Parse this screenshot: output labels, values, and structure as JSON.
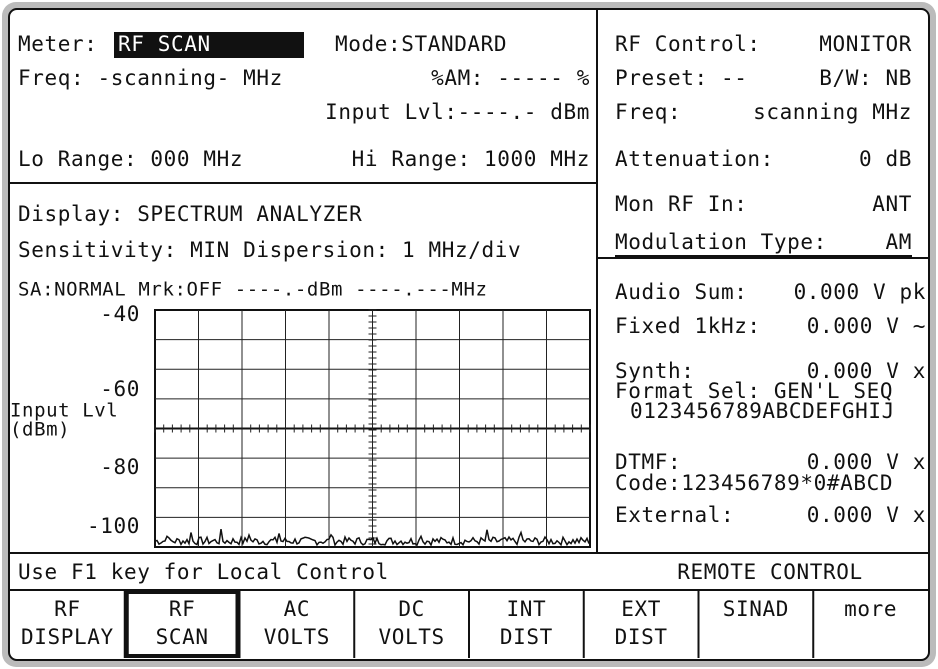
{
  "meter": {
    "label": "Meter:",
    "value": "RF SCAN",
    "mode": "Mode:STANDARD",
    "freq": "Freq:  -scanning- MHz",
    "am": "%AM: ----- %",
    "input_lvl": "Input Lvl:----.- dBm",
    "lo_range": "Lo Range: 000 MHz",
    "hi_range": "Hi Range:  1000 MHz"
  },
  "display": {
    "display": "Display: SPECTRUM ANALYZER",
    "sensitivity": "Sensitivity: MIN Dispersion:  1 MHz/div",
    "marker": "SA:NORMAL Mrk:OFF  ----.-dBm ----.---MHz",
    "y_labels": [
      "-40",
      "-60",
      "-80",
      "-100"
    ],
    "y_title": [
      "Input Lvl",
      "(dBm)"
    ]
  },
  "rf_control": {
    "rows": [
      [
        "RF Control:",
        "MONITOR"
      ],
      [
        "Preset: --",
        "B/W: NB"
      ],
      [
        "Freq:",
        "scanning MHz"
      ],
      [
        "Attenuation:",
        "0 dB"
      ],
      [
        "Mon RF In:",
        "ANT"
      ],
      [
        "Modulation Type:",
        "AM"
      ]
    ]
  },
  "audio": {
    "rows": [
      [
        "Audio Sum:",
        "0.000 V pk"
      ],
      [
        "Fixed 1kHz:",
        "0.000 V  ~"
      ],
      [
        "Synth:",
        "0.000 V  x"
      ],
      [
        "DTMF:",
        "0.000 V  x"
      ],
      [
        "External:",
        "0.000 V  x"
      ]
    ],
    "format_sel": "Format Sel: GEN'L SEQ",
    "sequence": "0123456789ABCDEFGHIJ",
    "code": "Code:123456789*0#ABCD"
  },
  "status": {
    "hint": "Use F1 key for Local Control",
    "mode": "REMOTE CONTROL"
  },
  "softkeys": [
    [
      "RF",
      "DISPLAY"
    ],
    [
      "RF",
      "SCAN"
    ],
    [
      "AC",
      "VOLTS"
    ],
    [
      "DC",
      "VOLTS"
    ],
    [
      "INT",
      "DIST"
    ],
    [
      "EXT",
      "DIST"
    ],
    [
      "SINAD",
      ""
    ],
    [
      "more",
      ""
    ]
  ]
}
